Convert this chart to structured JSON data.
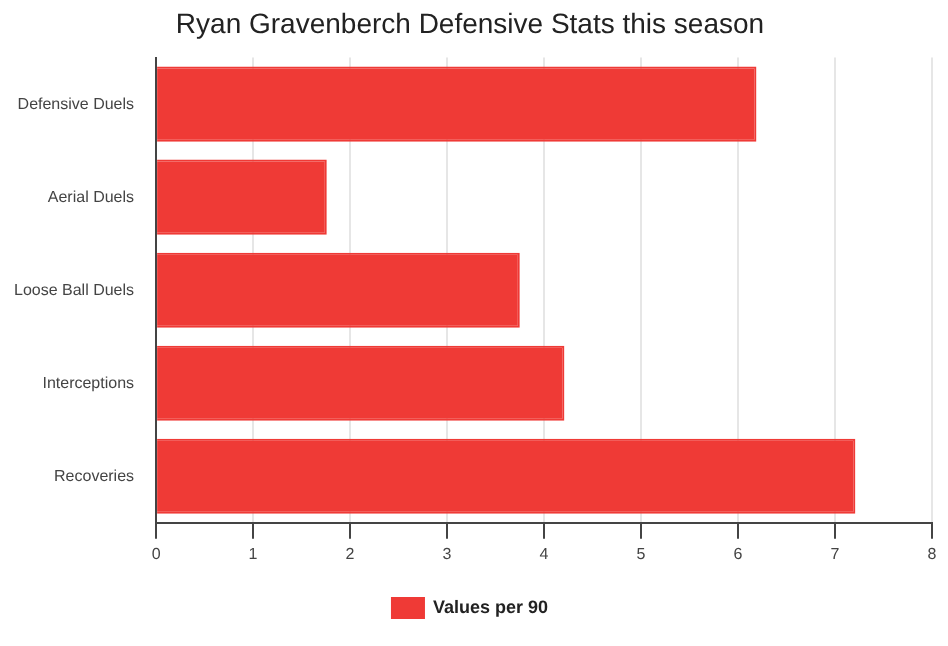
{
  "chart_data": {
    "type": "bar",
    "orientation": "horizontal",
    "title": "Ryan Gravenberch Defensive Stats this season",
    "categories": [
      "Defensive Duels",
      "Aerial Duels",
      "Loose Ball Duels",
      "Interceptions",
      "Recoveries"
    ],
    "series": [
      {
        "name": "Values per 90",
        "color": "#ef3a36",
        "values": [
          6.19,
          1.76,
          3.75,
          4.21,
          7.21
        ]
      }
    ],
    "xlim": [
      0,
      8
    ],
    "xticks": [
      0,
      1,
      2,
      3,
      4,
      5,
      6,
      7,
      8
    ],
    "grid": "x",
    "legend": "bottom"
  }
}
